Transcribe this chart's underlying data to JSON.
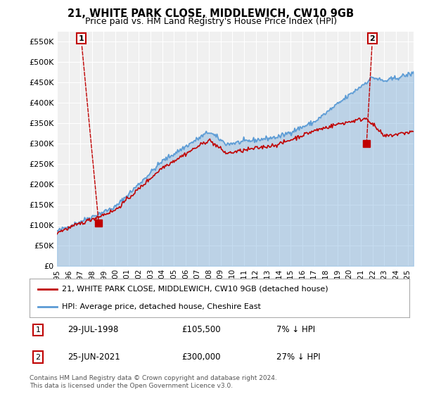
{
  "title_line1": "21, WHITE PARK CLOSE, MIDDLEWICH, CW10 9GB",
  "title_line2": "Price paid vs. HM Land Registry's House Price Index (HPI)",
  "ylabel_ticks": [
    "£0",
    "£50K",
    "£100K",
    "£150K",
    "£200K",
    "£250K",
    "£300K",
    "£350K",
    "£400K",
    "£450K",
    "£500K",
    "£550K"
  ],
  "ytick_values": [
    0,
    50000,
    100000,
    150000,
    200000,
    250000,
    300000,
    350000,
    400000,
    450000,
    500000,
    550000
  ],
  "ylim": [
    0,
    575000
  ],
  "xlim_start": 1995.0,
  "xlim_end": 2025.5,
  "xtick_labels": [
    "1995",
    "1996",
    "1997",
    "1998",
    "1999",
    "2000",
    "2001",
    "2002",
    "2003",
    "2004",
    "2005",
    "2006",
    "2007",
    "2008",
    "2009",
    "2010",
    "2011",
    "2012",
    "2013",
    "2014",
    "2015",
    "2016",
    "2017",
    "2018",
    "2019",
    "2020",
    "2021",
    "2022",
    "2023",
    "2024",
    "2025"
  ],
  "xtick_values": [
    1995,
    1996,
    1997,
    1998,
    1999,
    2000,
    2001,
    2002,
    2003,
    2004,
    2005,
    2006,
    2007,
    2008,
    2009,
    2010,
    2011,
    2012,
    2013,
    2014,
    2015,
    2016,
    2017,
    2018,
    2019,
    2020,
    2021,
    2022,
    2023,
    2024,
    2025
  ],
  "hpi_color": "#5b9bd5",
  "price_color": "#c00000",
  "marker1_x": 1998.57,
  "marker1_y": 105500,
  "marker2_x": 2021.48,
  "marker2_y": 300000,
  "marker1_label": "1",
  "marker2_label": "2",
  "legend_line1": "21, WHITE PARK CLOSE, MIDDLEWICH, CW10 9GB (detached house)",
  "legend_line2": "HPI: Average price, detached house, Cheshire East",
  "table_row1_label": "1",
  "table_row1_date": "29-JUL-1998",
  "table_row1_price": "£105,500",
  "table_row1_hpi": "7% ↓ HPI",
  "table_row2_label": "2",
  "table_row2_date": "25-JUN-2021",
  "table_row2_price": "£300,000",
  "table_row2_hpi": "27% ↓ HPI",
  "footer": "Contains HM Land Registry data © Crown copyright and database right 2024.\nThis data is licensed under the Open Government Licence v3.0.",
  "background_color": "#ffffff",
  "plot_bg_color": "#f0f0f0"
}
